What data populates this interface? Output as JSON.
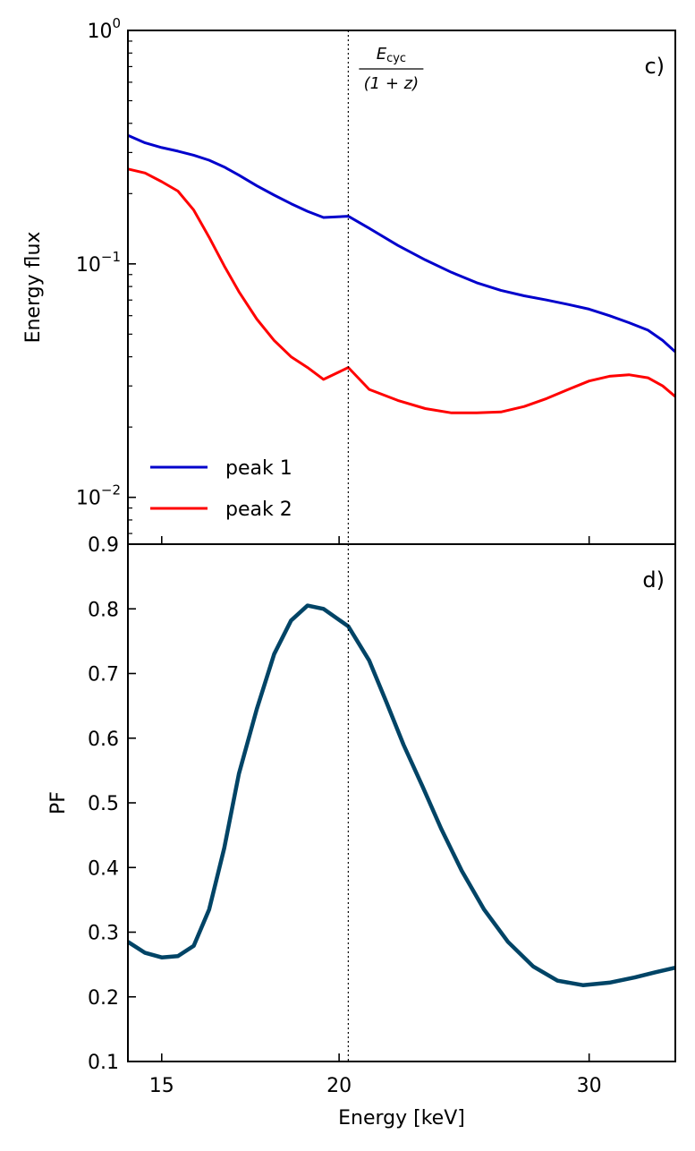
{
  "chart_data": [
    {
      "type": "line",
      "panel_label": "c)",
      "ylabel": "Energy flux",
      "xlabel": "",
      "yscale": "log",
      "xscale": "log",
      "xlim": [
        14.2,
        34.5
      ],
      "ylim": [
        0.0063,
        1.0
      ],
      "yticks": [
        {
          "value": 1.0,
          "base": "10",
          "exp": "0"
        },
        {
          "value": 0.1,
          "base": "10",
          "exp": "−1"
        },
        {
          "value": 0.01,
          "base": "10",
          "exp": "−2"
        }
      ],
      "annotation": {
        "x": 20.3,
        "num": "E",
        "num_sub": "cyc",
        "den": "(1 + z)"
      },
      "legend_position": "lower-left",
      "grid": false,
      "series": [
        {
          "name": "peak 1",
          "color": "#0000cc",
          "x": [
            14.2,
            14.6,
            15.0,
            15.4,
            15.8,
            16.2,
            16.6,
            17.0,
            17.5,
            18.0,
            18.5,
            19.0,
            19.5,
            20.3,
            21.0,
            22.0,
            23.0,
            24.0,
            25.0,
            26.0,
            27.0,
            28.0,
            29.0,
            30.0,
            31.0,
            32.0,
            33.0,
            33.8,
            34.5
          ],
          "y": [
            0.355,
            0.33,
            0.315,
            0.304,
            0.292,
            0.278,
            0.26,
            0.24,
            0.216,
            0.197,
            0.181,
            0.168,
            0.158,
            0.16,
            0.142,
            0.12,
            0.104,
            0.092,
            0.083,
            0.077,
            0.073,
            0.07,
            0.067,
            0.064,
            0.06,
            0.056,
            0.052,
            0.047,
            0.042
          ]
        },
        {
          "name": "peak 2",
          "color": "#ff0000",
          "x": [
            14.2,
            14.6,
            15.0,
            15.4,
            15.8,
            16.2,
            16.6,
            17.0,
            17.5,
            18.0,
            18.5,
            19.0,
            19.5,
            20.3,
            21.0,
            22.0,
            23.0,
            24.0,
            25.0,
            26.0,
            27.0,
            28.0,
            29.0,
            30.0,
            31.0,
            32.0,
            33.0,
            33.8,
            34.5
          ],
          "y": [
            0.255,
            0.245,
            0.225,
            0.205,
            0.17,
            0.13,
            0.098,
            0.076,
            0.058,
            0.047,
            0.04,
            0.036,
            0.032,
            0.036,
            0.029,
            0.026,
            0.024,
            0.023,
            0.023,
            0.0232,
            0.0245,
            0.0265,
            0.029,
            0.0315,
            0.033,
            0.0335,
            0.0325,
            0.03,
            0.027
          ]
        }
      ]
    },
    {
      "type": "line",
      "panel_label": "d)",
      "ylabel": "PF",
      "xlabel": "Energy  [keV]",
      "xscale": "log",
      "xlim": [
        14.2,
        34.5
      ],
      "ylim": [
        0.1,
        0.9
      ],
      "yticks": [
        "0.1",
        "0.2",
        "0.3",
        "0.4",
        "0.5",
        "0.6",
        "0.7",
        "0.8",
        "0.9"
      ],
      "xticks": [
        "15",
        "20",
        "30"
      ],
      "annotation": {
        "x": 20.3
      },
      "grid": false,
      "series": [
        {
          "color": "#004466",
          "x": [
            14.2,
            14.6,
            15.0,
            15.4,
            15.8,
            16.2,
            16.6,
            17.0,
            17.5,
            18.0,
            18.5,
            19.0,
            19.5,
            20.3,
            21.0,
            21.6,
            22.2,
            22.9,
            23.6,
            24.4,
            25.3,
            26.3,
            27.4,
            28.5,
            29.7,
            31.0,
            32.3,
            33.4,
            34.5
          ],
          "y": [
            0.285,
            0.268,
            0.261,
            0.263,
            0.279,
            0.335,
            0.43,
            0.545,
            0.645,
            0.73,
            0.782,
            0.805,
            0.8,
            0.773,
            0.72,
            0.655,
            0.59,
            0.525,
            0.46,
            0.395,
            0.335,
            0.285,
            0.247,
            0.225,
            0.218,
            0.222,
            0.23,
            0.238,
            0.245
          ]
        }
      ]
    }
  ]
}
